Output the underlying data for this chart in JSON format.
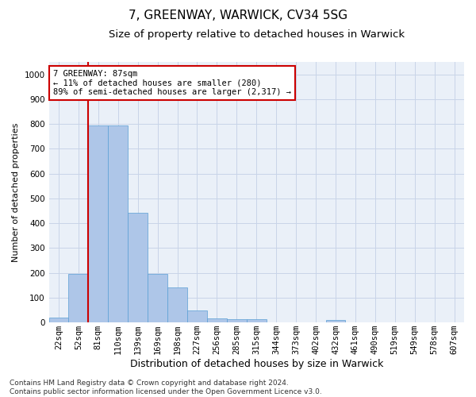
{
  "title": "7, GREENWAY, WARWICK, CV34 5SG",
  "subtitle": "Size of property relative to detached houses in Warwick",
  "xlabel": "Distribution of detached houses by size in Warwick",
  "ylabel": "Number of detached properties",
  "bar_labels": [
    "22sqm",
    "52sqm",
    "81sqm",
    "110sqm",
    "139sqm",
    "169sqm",
    "198sqm",
    "227sqm",
    "256sqm",
    "285sqm",
    "315sqm",
    "344sqm",
    "373sqm",
    "402sqm",
    "432sqm",
    "461sqm",
    "490sqm",
    "519sqm",
    "549sqm",
    "578sqm",
    "607sqm"
  ],
  "bar_values": [
    20,
    197,
    793,
    793,
    443,
    197,
    140,
    50,
    15,
    13,
    13,
    0,
    0,
    0,
    10,
    0,
    0,
    0,
    0,
    0,
    0
  ],
  "bar_color": "#aec6e8",
  "bar_edge_color": "#5a9fd4",
  "vline_color": "#cc0000",
  "vline_x_index": 2,
  "annotation_text": "7 GREENWAY: 87sqm\n← 11% of detached houses are smaller (280)\n89% of semi-detached houses are larger (2,317) →",
  "annotation_box_color": "#cc0000",
  "ylim": [
    0,
    1050
  ],
  "yticks": [
    0,
    100,
    200,
    300,
    400,
    500,
    600,
    700,
    800,
    900,
    1000
  ],
  "grid_color": "#c8d4e8",
  "bg_color": "#eaf0f8",
  "footnote": "Contains HM Land Registry data © Crown copyright and database right 2024.\nContains public sector information licensed under the Open Government Licence v3.0.",
  "title_fontsize": 11,
  "subtitle_fontsize": 9.5,
  "xlabel_fontsize": 9,
  "ylabel_fontsize": 8,
  "tick_fontsize": 7.5,
  "annotation_fontsize": 7.5,
  "footnote_fontsize": 6.5
}
